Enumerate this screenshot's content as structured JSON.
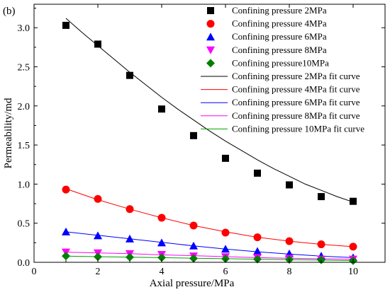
{
  "chart_data": {
    "type": "scatter",
    "panel_label": "(b)",
    "xlabel": "Axial pressure/MPa",
    "ylabel": "Permeability/md",
    "xlim": [
      0,
      11
    ],
    "ylim": [
      0,
      3.3
    ],
    "xticks": [
      0,
      2,
      4,
      6,
      8,
      10
    ],
    "yticks": [
      0.0,
      0.5,
      1.0,
      1.5,
      2.0,
      2.5,
      3.0
    ],
    "ytick_labels": [
      "0.0",
      "0.5",
      "1.0",
      "1.5",
      "2.0",
      "2.5",
      "3.0"
    ],
    "grid": false,
    "legend_position": "top-right",
    "x": [
      1,
      2,
      3,
      4,
      5,
      6,
      7,
      8,
      9,
      10
    ],
    "series": [
      {
        "name": "Confining pressure 2MPa",
        "marker": "square",
        "color": "#000000",
        "values": [
          3.03,
          2.79,
          2.39,
          1.96,
          1.62,
          1.33,
          1.14,
          0.99,
          0.84,
          0.78
        ]
      },
      {
        "name": "Confining pressure 4MPa",
        "marker": "circle",
        "color": "#ff0000",
        "values": [
          0.93,
          0.81,
          0.68,
          0.57,
          0.47,
          0.38,
          0.32,
          0.27,
          0.23,
          0.2
        ]
      },
      {
        "name": "Confining pressure 6MPa",
        "marker": "triangle-up",
        "color": "#0000ff",
        "values": [
          0.39,
          0.34,
          0.3,
          0.25,
          0.21,
          0.17,
          0.14,
          0.11,
          0.08,
          0.06
        ]
      },
      {
        "name": "Confining pressure 8MPa",
        "marker": "triangle-down",
        "color": "#ff00ff",
        "values": [
          0.13,
          0.12,
          0.11,
          0.1,
          0.08,
          0.07,
          0.06,
          0.05,
          0.04,
          0.04
        ]
      },
      {
        "name": "Confining pressure10MPa",
        "marker": "diamond",
        "color": "#008000",
        "values": [
          0.08,
          0.07,
          0.065,
          0.06,
          0.05,
          0.045,
          0.04,
          0.035,
          0.03,
          0.02
        ]
      }
    ],
    "fit_curves": [
      {
        "name": "Confining pressure 2MPa fit curve",
        "color": "#000000",
        "x": [
          1,
          1.5,
          2,
          2.5,
          3,
          3.5,
          4,
          4.5,
          5,
          5.5,
          6,
          6.5,
          7,
          7.5,
          8,
          8.5,
          9,
          9.5,
          10
        ],
        "values": [
          3.12,
          2.94,
          2.77,
          2.6,
          2.43,
          2.27,
          2.11,
          1.96,
          1.82,
          1.68,
          1.55,
          1.43,
          1.31,
          1.2,
          1.1,
          1.0,
          0.92,
          0.84,
          0.77
        ]
      },
      {
        "name": "Confining pressure 4MPa fit curve",
        "color": "#ff0000",
        "x": [
          1,
          2,
          3,
          4,
          5,
          6,
          7,
          8,
          9,
          10
        ],
        "values": [
          0.94,
          0.8,
          0.68,
          0.57,
          0.47,
          0.39,
          0.32,
          0.27,
          0.23,
          0.2
        ]
      },
      {
        "name": "Confining pressure 6MPa fit curve",
        "color": "#0000ff",
        "x": [
          1,
          2,
          3,
          4,
          5,
          6,
          7,
          8,
          9,
          10
        ],
        "values": [
          0.39,
          0.345,
          0.3,
          0.255,
          0.21,
          0.17,
          0.135,
          0.105,
          0.08,
          0.06
        ]
      },
      {
        "name": "Confining pressure 8MPa fit curve",
        "color": "#ff00ff",
        "x": [
          1,
          2,
          3,
          4,
          5,
          6,
          7,
          8,
          9,
          10
        ],
        "values": [
          0.13,
          0.12,
          0.11,
          0.095,
          0.085,
          0.072,
          0.06,
          0.052,
          0.045,
          0.04
        ]
      },
      {
        "name": "Confining pressure 10MPa fit curve",
        "color": "#00a000",
        "x": [
          1,
          2,
          3,
          4,
          5,
          6,
          7,
          8,
          9,
          10
        ],
        "values": [
          0.08,
          0.072,
          0.066,
          0.06,
          0.052,
          0.046,
          0.04,
          0.034,
          0.028,
          0.022
        ]
      }
    ]
  }
}
